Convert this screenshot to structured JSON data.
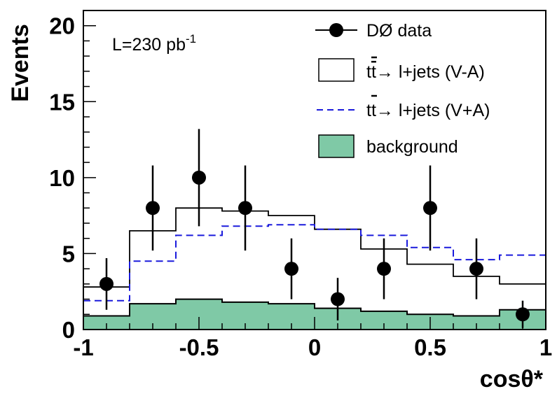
{
  "chart_data": {
    "type": "histogram",
    "title": "",
    "xlabel": "cosθ*",
    "ylabel": "Events",
    "xlim": [
      -1,
      1
    ],
    "ylim": [
      0,
      21
    ],
    "x_ticks": [
      "-1",
      "-0.5",
      "0",
      "0.5",
      "1"
    ],
    "x_tick_values": [
      -1,
      -0.5,
      0,
      0.5,
      1
    ],
    "y_ticks": [
      "0",
      "5",
      "10",
      "15",
      "20"
    ],
    "y_tick_values": [
      0,
      5,
      10,
      15,
      20
    ],
    "luminosity_label": "L=230 pb",
    "luminosity_superscript": "-1",
    "bin_edges": [
      -1,
      -0.8,
      -0.6,
      -0.4,
      -0.2,
      0,
      0.2,
      0.4,
      0.6,
      0.8,
      1
    ],
    "series": [
      {
        "name": "background",
        "style": "filled",
        "color": "#7fc9a6",
        "values": [
          0.9,
          1.7,
          2.0,
          1.8,
          1.7,
          1.4,
          1.2,
          1.0,
          0.9,
          1.3
        ]
      },
      {
        "name": "tt→ l+jets (V-A)",
        "style": "solid",
        "color": "#000000",
        "values": [
          2.8,
          6.5,
          8.0,
          7.8,
          7.5,
          6.6,
          5.3,
          4.3,
          3.5,
          3.0
        ]
      },
      {
        "name": "tt→ l+jets (V+A)",
        "style": "dashed",
        "color": "#1a1adc",
        "values": [
          1.9,
          4.5,
          6.2,
          6.8,
          6.9,
          6.6,
          6.2,
          5.4,
          4.6,
          4.9
        ]
      }
    ],
    "data_points": {
      "name": "DØ data",
      "x": [
        -0.9,
        -0.7,
        -0.5,
        -0.3,
        -0.1,
        0.1,
        0.3,
        0.5,
        0.7,
        0.9
      ],
      "y": [
        3,
        8,
        10,
        8,
        4,
        2,
        4,
        8,
        4,
        1
      ],
      "err_low": [
        1.7,
        2.8,
        3.2,
        2.8,
        2.0,
        1.4,
        2.0,
        2.8,
        2.0,
        0.9
      ],
      "err_high": [
        1.7,
        2.8,
        3.2,
        2.8,
        2.0,
        1.4,
        2.0,
        2.8,
        2.0,
        0.9
      ]
    },
    "legend": [
      {
        "label": "DØ data",
        "kind": "marker"
      },
      {
        "label_pre": "t",
        "label_bar": "t",
        "label_post": "→ l+jets (V-A)",
        "kind": "solid-box"
      },
      {
        "label_pre": "t",
        "label_bar": "t",
        "label_post": "→ l+jets (V+A)",
        "kind": "dashed-line"
      },
      {
        "label": "background",
        "kind": "filled-box"
      }
    ],
    "legend_position": "top-right"
  }
}
